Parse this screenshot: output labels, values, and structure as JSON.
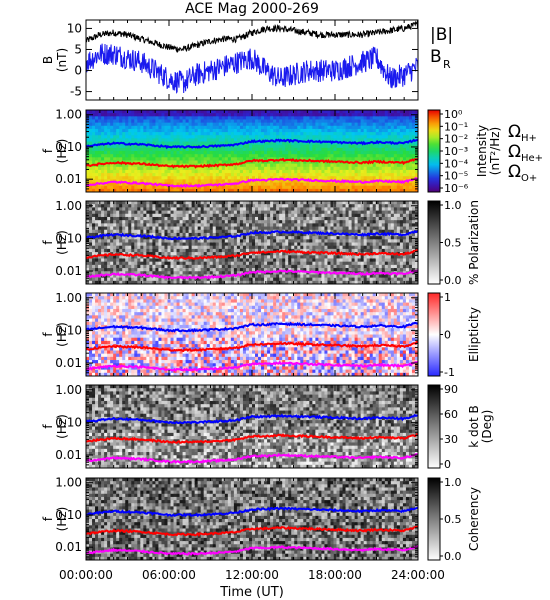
{
  "figure": {
    "title": "ACE Mag 2000-269",
    "xlabel": "Time (UT)",
    "xticks": [
      "00:00:00",
      "06:00:00",
      "12:00:00",
      "18:00:00",
      "24:00:00"
    ],
    "xtick_hours": [
      0,
      6,
      12,
      18,
      24
    ],
    "minor_tick_hours": [
      1,
      2,
      3,
      4,
      5,
      7,
      8,
      9,
      10,
      11,
      13,
      14,
      15,
      16,
      17,
      19,
      20,
      21,
      22,
      23
    ]
  },
  "colors": {
    "btotal": "#000000",
    "br": "#1a1aee",
    "h_plus": "#0000ff",
    "he_plus": "#ff0000",
    "o_plus": "#ff00ff"
  },
  "chart_data": [
    {
      "type": "line",
      "panel": "field",
      "ylabel": "B",
      "yunit": "(nT)",
      "ylim": [
        -7,
        12
      ],
      "yticks": [
        "10",
        "5",
        "0",
        "-5"
      ],
      "ytick_values": [
        10,
        5,
        0,
        -5
      ],
      "x_hours": [
        0,
        1,
        2,
        3,
        4,
        5,
        6,
        7,
        8,
        9,
        10,
        11,
        12,
        13,
        14,
        15,
        16,
        17,
        18,
        19,
        20,
        21,
        22,
        23,
        24
      ],
      "series": [
        {
          "name": "|B|",
          "color": "#000000",
          "values": [
            7,
            8.5,
            9,
            8.5,
            7.5,
            6.5,
            5.5,
            5,
            6,
            7,
            7.5,
            7.5,
            9,
            10,
            10,
            9.5,
            9,
            8.5,
            8.5,
            8.5,
            8.5,
            9,
            9.5,
            10,
            11
          ]
        },
        {
          "name": "BR",
          "subscript": "R",
          "color": "#1a1aee",
          "values": [
            2,
            4,
            4,
            3,
            2,
            0,
            -2,
            -3,
            -1,
            0,
            1,
            2,
            3,
            0,
            -2,
            -1,
            0,
            0,
            0,
            1,
            2,
            3,
            -2,
            -1,
            1
          ]
        }
      ]
    },
    {
      "type": "heatmap",
      "panel": "intensity",
      "ylabel": "f",
      "yunit": "(Hz)",
      "yscale": "log",
      "ylim": [
        0.004,
        1.4
      ],
      "yticks": [
        "1.00",
        "0.10",
        "0.01"
      ],
      "ytick_values": [
        1,
        0.1,
        0.01
      ],
      "colorbar": {
        "label": "Intensity",
        "unit": "(nT²/Hz)",
        "scale": "log",
        "ticks": [
          "10⁰",
          "10⁻¹",
          "10⁻²",
          "10⁻³",
          "10⁻⁴",
          "10⁻⁵",
          "10⁻⁶"
        ],
        "tick_values": [
          1,
          0.1,
          0.01,
          0.001,
          0.0001,
          1e-05,
          1e-06
        ],
        "colormap": "rainbow"
      }
    },
    {
      "type": "heatmap",
      "panel": "polarization",
      "ylabel": "f",
      "yunit": "(Hz)",
      "yscale": "log",
      "ylim": [
        0.004,
        1.4
      ],
      "yticks": [
        "1.00",
        "0.10",
        "0.01"
      ],
      "ytick_values": [
        1,
        0.1,
        0.01
      ],
      "colorbar": {
        "label": "% Polarization",
        "unit": "",
        "ticks": [
          "1.0",
          "0.5",
          "0.0"
        ],
        "tick_values": [
          1,
          0.5,
          0
        ],
        "colormap": "gray"
      }
    },
    {
      "type": "heatmap",
      "panel": "ellipticity",
      "ylabel": "f",
      "yunit": "(Hz)",
      "yscale": "log",
      "ylim": [
        0.004,
        1.4
      ],
      "yticks": [
        "1.00",
        "0.10",
        "0.01"
      ],
      "ytick_values": [
        1,
        0.1,
        0.01
      ],
      "colorbar": {
        "label": "Ellipticity",
        "unit": "",
        "ticks": [
          "1",
          "0",
          "-1"
        ],
        "tick_values": [
          1,
          0,
          -1
        ],
        "colormap": "blue-white-red"
      }
    },
    {
      "type": "heatmap",
      "panel": "kdotb",
      "ylabel": "f",
      "yunit": "(Hz)",
      "yscale": "log",
      "ylim": [
        0.004,
        1.4
      ],
      "yticks": [
        "1.00",
        "0.10",
        "0.01"
      ],
      "ytick_values": [
        1,
        0.1,
        0.01
      ],
      "colorbar": {
        "label": "k dot B",
        "unit": "(Deg)",
        "ticks": [
          "90",
          "60",
          "30",
          "0"
        ],
        "tick_values": [
          90,
          60,
          30,
          0
        ],
        "colormap": "gray"
      }
    },
    {
      "type": "heatmap",
      "panel": "coherency",
      "ylabel": "f",
      "yunit": "(Hz)",
      "yscale": "log",
      "ylim": [
        0.004,
        1.4
      ],
      "yticks": [
        "1.00",
        "0.10",
        "0.01"
      ],
      "ytick_values": [
        1,
        0.1,
        0.01
      ],
      "colorbar": {
        "label": "Coherency",
        "unit": "",
        "ticks": [
          "1.0",
          "0.5",
          "0.0"
        ],
        "tick_values": [
          1,
          0.5,
          0
        ],
        "colormap": "gray"
      }
    }
  ],
  "gyrofrequency_lines": {
    "x_hours": [
      0,
      2,
      4,
      6,
      8,
      10,
      11,
      12,
      13,
      14,
      16,
      18,
      20,
      21,
      22,
      23,
      24
    ],
    "h_plus_hz": [
      0.105,
      0.13,
      0.12,
      0.1,
      0.1,
      0.11,
      0.12,
      0.15,
      0.15,
      0.16,
      0.15,
      0.14,
      0.13,
      0.14,
      0.135,
      0.13,
      0.17
    ]
  },
  "legend": {
    "B_total": "|B|",
    "B_R": "B",
    "B_R_sub": "R",
    "omega": "Ω",
    "h_plus": "H+",
    "he_plus": "He+",
    "o_plus": "O+"
  }
}
